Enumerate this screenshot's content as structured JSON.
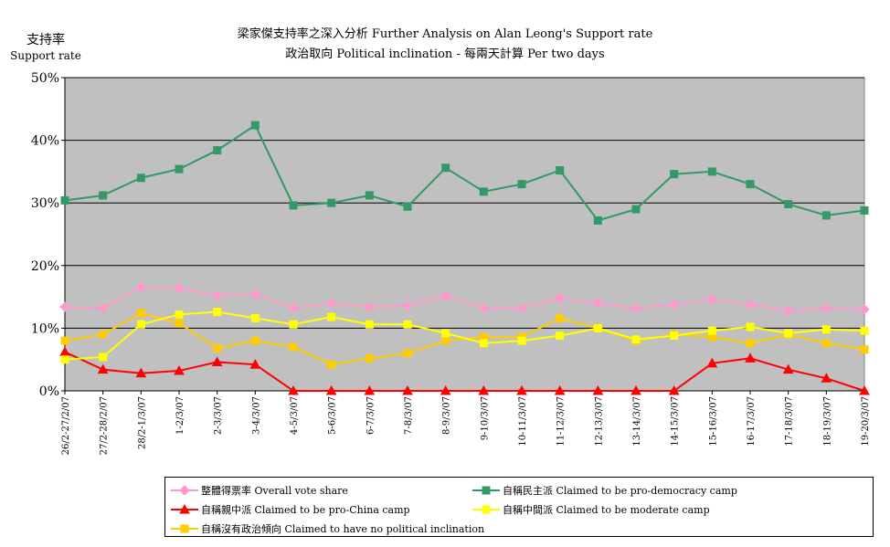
{
  "chart_data": {
    "type": "line",
    "title": "梁家傑支持率之深入分析 Further Analysis on Alan Leong's Support rate",
    "subtitle": "政治取向 Political inclination - 每兩天計算 Per two days",
    "ylabel_zh": "支持率",
    "ylabel_en": "Support rate",
    "xlabel": "",
    "ylim": [
      0,
      50
    ],
    "yticks": [
      "0%",
      "10%",
      "20%",
      "30%",
      "40%",
      "50%"
    ],
    "grid": true,
    "legend_position": "bottom",
    "categories": [
      "26/2-27/2/07",
      "27/2-28/2/07",
      "28/2-1/3/07",
      "1-2/3/07",
      "2-3/3/07",
      "3-4/3/07",
      "4-5/3/07",
      "5-6/3/07",
      "6-7/3/07",
      "7-8/3/07",
      "8-9/3/07",
      "9-10/3/07",
      "10-11/3/07",
      "11-12/3/07",
      "12-13/3/07",
      "13-14/3/07",
      "14-15/3/07",
      "15-16/3/07",
      "16-17/3/07",
      "17-18/3/07",
      "18-19/3/07",
      "19-20/3/07"
    ],
    "series": [
      {
        "name": "整體得票率 Overall vote share",
        "color": "#ff99cc",
        "marker": "diamond",
        "values": [
          13.4,
          13.2,
          16.6,
          16.4,
          15.2,
          15.4,
          13.2,
          14.0,
          13.4,
          13.6,
          15.2,
          13.2,
          13.2,
          14.8,
          14.0,
          13.2,
          13.8,
          14.6,
          13.8,
          12.8,
          13.2,
          13.0
        ]
      },
      {
        "name": "自稱民主派 Claimed to be pro-democracy camp",
        "color": "#339966",
        "marker": "square",
        "values": [
          30.4,
          31.2,
          34.0,
          35.4,
          38.4,
          42.4,
          29.6,
          30.0,
          31.2,
          29.4,
          35.6,
          31.8,
          33.0,
          35.2,
          27.2,
          29.0,
          34.6,
          35.0,
          33.0,
          29.8,
          28.0,
          28.8
        ]
      },
      {
        "name": "自稱親中派 Claimed to be pro-China camp",
        "color": "#ff0000",
        "marker": "triangle",
        "values": [
          6.2,
          3.4,
          2.8,
          3.2,
          4.6,
          4.2,
          0,
          0,
          0,
          0,
          0,
          0,
          0,
          0,
          0,
          0,
          0,
          4.4,
          5.2,
          3.4,
          2.0,
          0
        ]
      },
      {
        "name": "自稱中間派 Claimed to be moderate camp",
        "color": "#ffff00",
        "marker": "square",
        "values": [
          5.0,
          5.4,
          10.6,
          12.2,
          12.6,
          11.6,
          10.6,
          11.8,
          10.6,
          10.6,
          9.2,
          7.6,
          8.0,
          8.8,
          10.0,
          8.2,
          8.8,
          9.6,
          10.2,
          9.2,
          9.8,
          9.6
        ]
      },
      {
        "name": "自稱沒有政治傾向 Claimed to have no political inclination",
        "color": "#ffcc00",
        "marker": "square",
        "values": [
          8.0,
          9.0,
          12.4,
          10.8,
          6.8,
          8.0,
          7.0,
          4.2,
          5.2,
          6.0,
          8.0,
          8.6,
          8.6,
          11.6,
          10.0,
          8.0,
          9.0,
          8.6,
          7.6,
          9.0,
          7.6,
          6.6
        ]
      }
    ]
  }
}
